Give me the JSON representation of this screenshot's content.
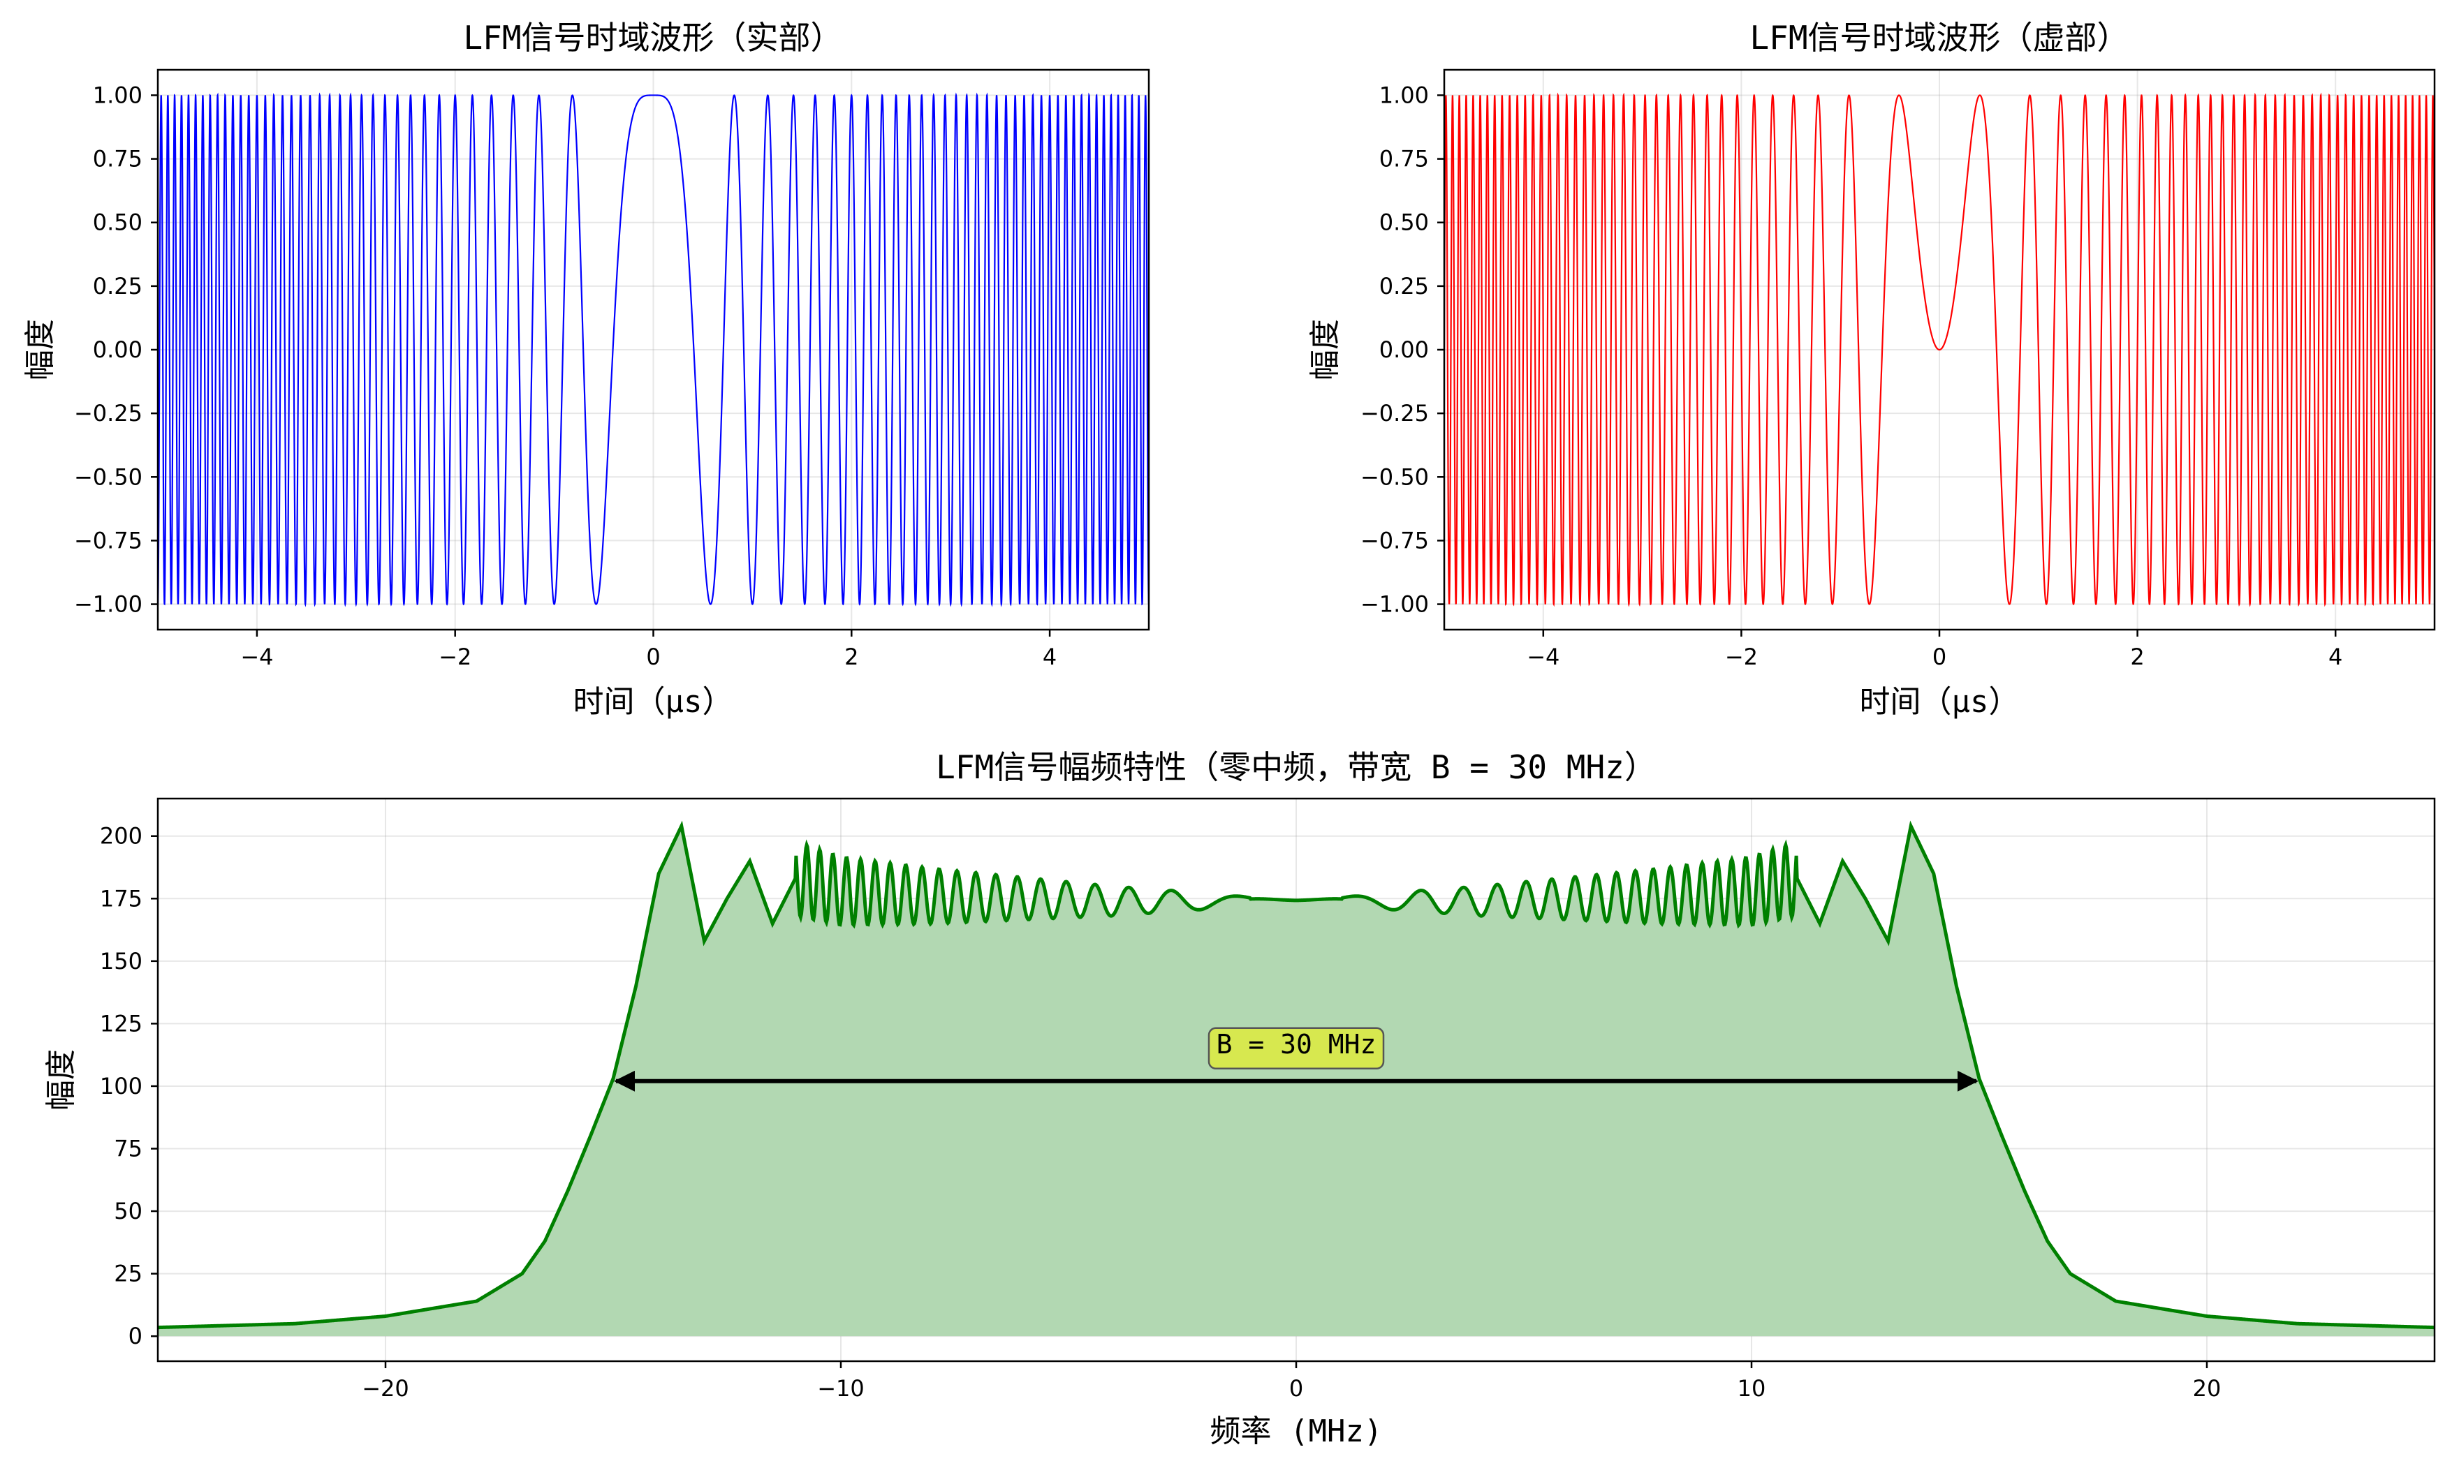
{
  "chart_data": [
    {
      "type": "line",
      "title": "LFM信号时域波形（实部）",
      "xlabel": "时间（μs）",
      "ylabel": "幅度",
      "xlim": [
        -5,
        5
      ],
      "ylim": [
        -1.1,
        1.1
      ],
      "xticks": [
        -4,
        -2,
        0,
        2,
        4
      ],
      "yticks": [
        1.0,
        0.75,
        0.5,
        0.25,
        0.0,
        -0.25,
        -0.5,
        -0.75,
        -1.0
      ],
      "xtick_labels": [
        "−4",
        "−2",
        "0",
        "2",
        "4"
      ],
      "ytick_labels": [
        "1.00",
        "0.75",
        "0.50",
        "0.25",
        "0.00",
        "−0.25",
        "−0.50",
        "−0.75",
        "−1.00"
      ],
      "grid": true,
      "color": "#0000ff",
      "series": [
        {
          "function": "cos(pi*K*t^2)",
          "chirp_rate_MHz_per_us": 3,
          "t_range": [
            -5,
            5
          ]
        }
      ]
    },
    {
      "type": "line",
      "title": "LFM信号时域波形（虚部）",
      "xlabel": "时间（μs）",
      "ylabel": "幅度",
      "xlim": [
        -5,
        5
      ],
      "ylim": [
        -1.1,
        1.1
      ],
      "xticks": [
        -4,
        -2,
        0,
        2,
        4
      ],
      "yticks": [
        1.0,
        0.75,
        0.5,
        0.25,
        0.0,
        -0.25,
        -0.5,
        -0.75,
        -1.0
      ],
      "xtick_labels": [
        "−4",
        "−2",
        "0",
        "2",
        "4"
      ],
      "ytick_labels": [
        "1.00",
        "0.75",
        "0.50",
        "0.25",
        "0.00",
        "−0.25",
        "−0.50",
        "−0.75",
        "−1.00"
      ],
      "grid": true,
      "color": "#ff0000",
      "series": [
        {
          "function": "sin(pi*K*t^2)",
          "chirp_rate_MHz_per_us": 3,
          "t_range": [
            -5,
            5
          ]
        }
      ]
    },
    {
      "type": "area",
      "title": "LFM信号幅频特性（零中频，带宽 B = 30 MHz）",
      "xlabel": "频率 (MHz)",
      "ylabel": "幅度",
      "xlim": [
        -25,
        25
      ],
      "ylim": [
        -10,
        215
      ],
      "xticks": [
        -20,
        -10,
        0,
        10,
        20
      ],
      "yticks": [
        200,
        175,
        150,
        125,
        100,
        75,
        50,
        25,
        0
      ],
      "xtick_labels": [
        "−20",
        "−10",
        "0",
        "10",
        "20"
      ],
      "ytick_labels": [
        "200",
        "175",
        "150",
        "125",
        "100",
        "75",
        "50",
        "25",
        "0"
      ],
      "grid": true,
      "color": "#008000",
      "fill_color": "#b2d8b2",
      "series": [
        {
          "x": [
            -25,
            -22,
            -20,
            -18,
            -17,
            -16.5,
            -16,
            -15.5,
            -15,
            -14.5,
            -14,
            -13.5,
            -13,
            -12.5,
            -12,
            -11.5,
            -11,
            -10,
            -8,
            -6,
            -4,
            -2,
            0,
            2,
            4,
            6,
            8,
            10,
            11,
            11.5,
            12,
            12.5,
            13,
            13.5,
            14,
            14.5,
            15,
            15.5,
            16,
            16.5,
            17,
            18,
            20,
            22,
            25
          ],
          "y": [
            3.5,
            5,
            8,
            14,
            25,
            38,
            58,
            80,
            103,
            140,
            185,
            204,
            158,
            175,
            190,
            165,
            183,
            178,
            176,
            175,
            174,
            174,
            173,
            174,
            174,
            175,
            176,
            178,
            183,
            165,
            190,
            175,
            158,
            204,
            185,
            140,
            103,
            80,
            58,
            38,
            25,
            14,
            8,
            5,
            3.5
          ],
          "ripple": "Fresnel ripple, amplitude decreasing toward 0 MHz"
        }
      ],
      "annotation": {
        "text": "B = 30 MHz",
        "x_range": [
          -15,
          15
        ],
        "y": 102
      }
    }
  ]
}
